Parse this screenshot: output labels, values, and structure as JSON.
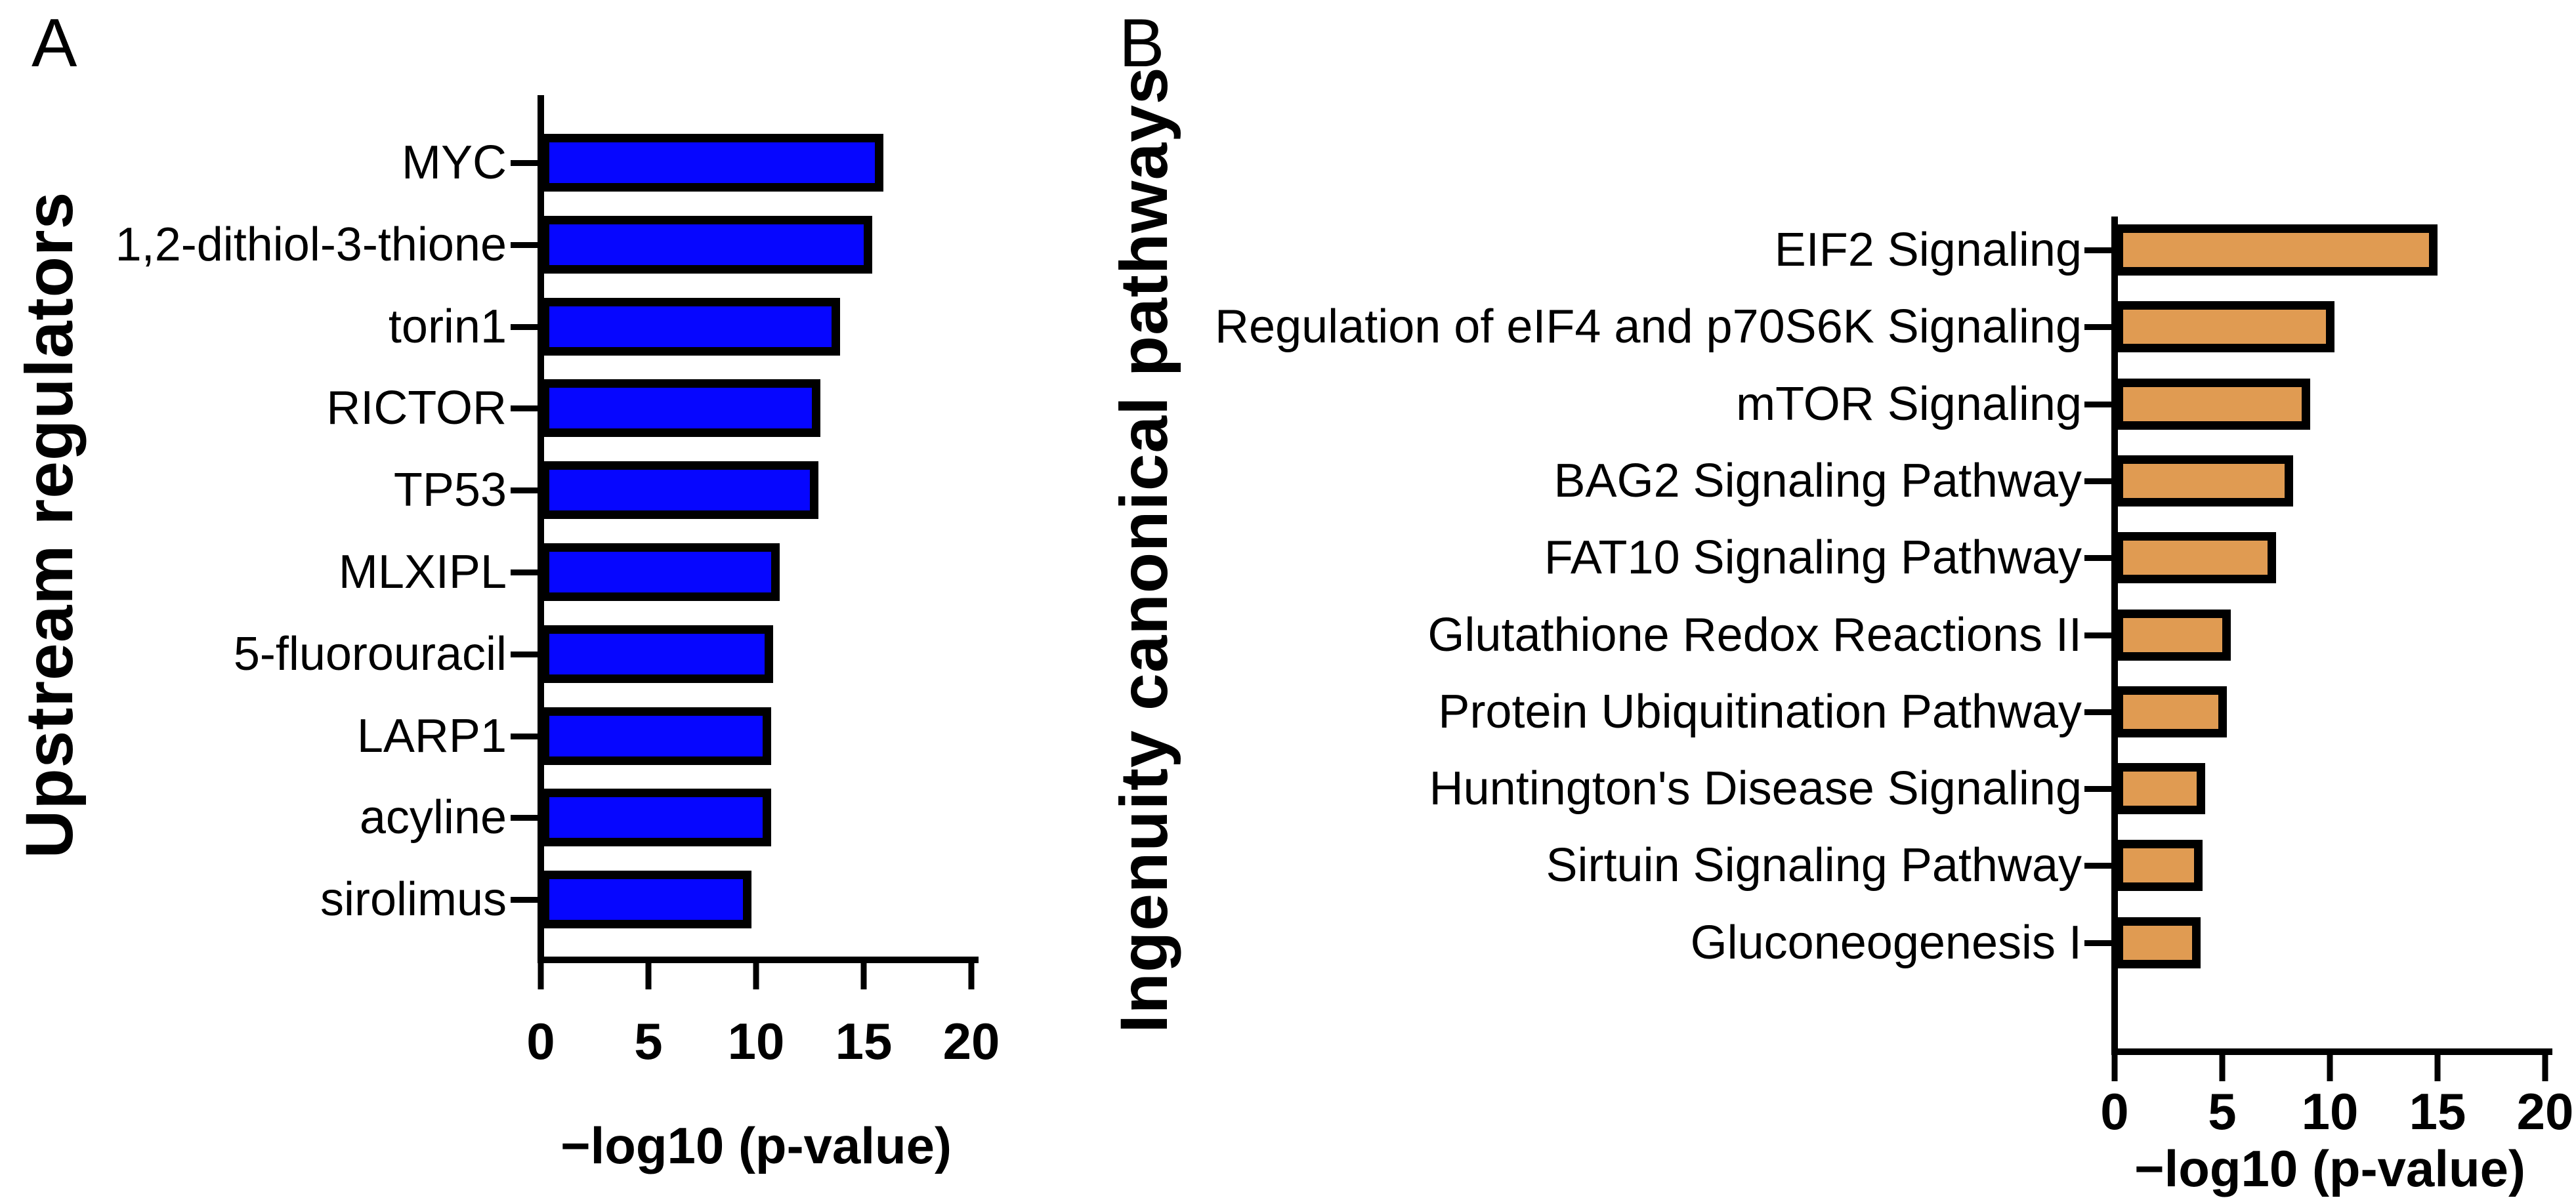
{
  "figure_type": "two-panel horizontal bar figure",
  "chart_data": [
    {
      "type": "bar",
      "orientation": "horizontal",
      "panel_letter": "A",
      "ylabel": "Upstream regulators",
      "xlabel": "−log10 (p-value)",
      "bar_color": "#0606ff",
      "bar_border_color": "#000000",
      "categories": [
        "MYC",
        "1,2-dithiol-3-thione",
        "torin1",
        "RICTOR",
        "TP53",
        "MLXIPL",
        "5-fluorouracil",
        "LARP1",
        "acyline",
        "sirolimus"
      ],
      "values": [
        15.9,
        15.4,
        13.9,
        13.0,
        12.9,
        11.1,
        10.8,
        10.7,
        10.7,
        9.8
      ],
      "xlim": [
        0,
        20
      ],
      "x_ticks": [
        0,
        5,
        10,
        15,
        20
      ],
      "grid": false,
      "legend": null
    },
    {
      "type": "bar",
      "orientation": "horizontal",
      "panel_letter": "B",
      "ylabel": "Ingenuity canonical pathways",
      "xlabel": "−log10 (p-value)",
      "bar_color": "#e09b52",
      "bar_border_color": "#000000",
      "categories": [
        "EIF2 Signaling",
        "Regulation of eIF4 and p70S6K Signaling",
        "mTOR Signaling",
        "BAG2 Signaling Pathway",
        "FAT10 Signaling Pathway",
        "Glutathione Redox Reactions II",
        "Protein Ubiquitination Pathway",
        "Huntington's Disease Signaling",
        "Sirtuin Signaling Pathway",
        "Gluconeogenesis I"
      ],
      "values": [
        15.0,
        10.2,
        9.1,
        8.3,
        7.5,
        5.4,
        5.2,
        4.2,
        4.1,
        4.0
      ],
      "xlim": [
        0,
        20
      ],
      "x_ticks": [
        0,
        5,
        10,
        15,
        20
      ],
      "grid": false,
      "legend": null
    }
  ]
}
